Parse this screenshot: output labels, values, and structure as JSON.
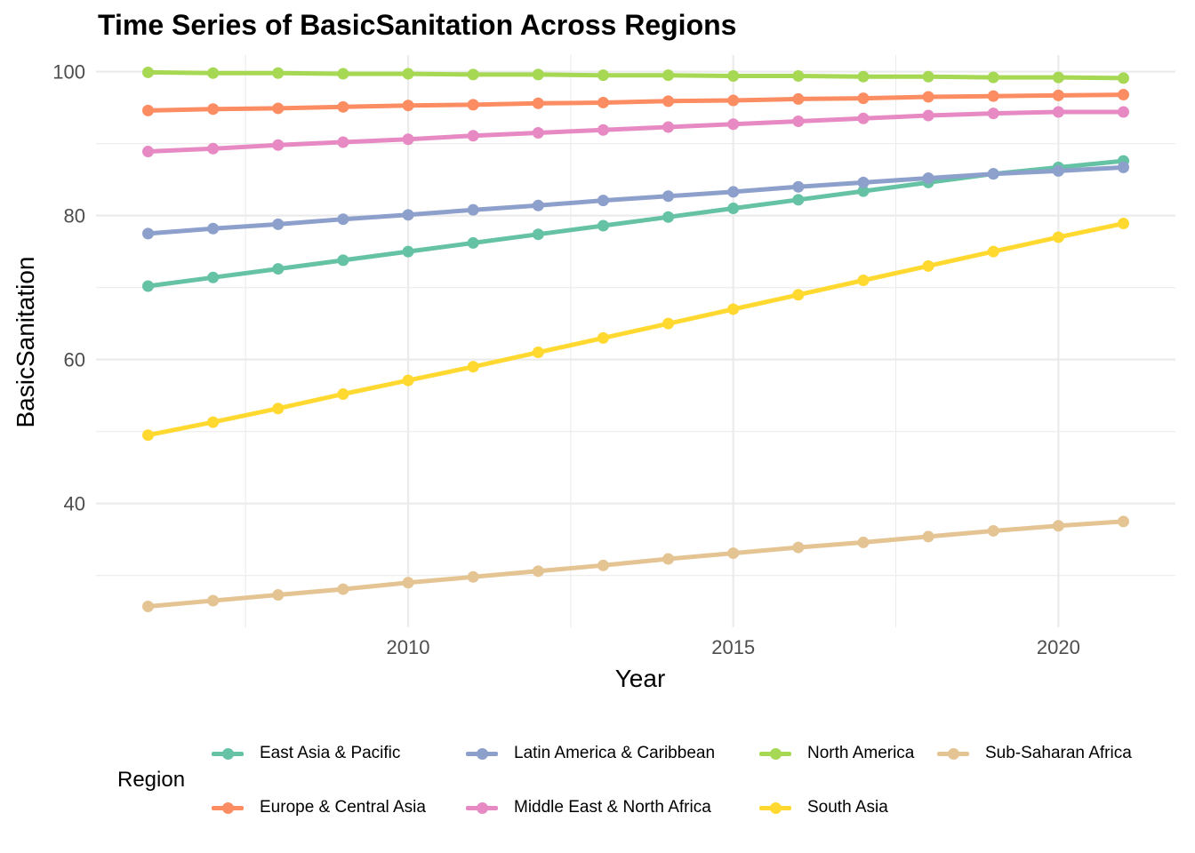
{
  "chart_data": {
    "type": "line",
    "title": "Time Series of BasicSanitation Across Regions",
    "xlabel": "Year",
    "ylabel": "BasicSanitation",
    "xlim": [
      2005.2,
      2021.8
    ],
    "ylim": [
      22.8,
      102.3
    ],
    "x_ticks": [
      2010,
      2015,
      2020
    ],
    "y_ticks": [
      40,
      60,
      80,
      100
    ],
    "grid": true,
    "legend_title": "Region",
    "legend_position": "bottom",
    "x": [
      2006,
      2007,
      2008,
      2009,
      2010,
      2011,
      2012,
      2013,
      2014,
      2015,
      2016,
      2017,
      2018,
      2019,
      2020,
      2021
    ],
    "series": [
      {
        "name": "East Asia & Pacific",
        "color": "#66c2a5",
        "values": [
          70.2,
          71.4,
          72.6,
          73.8,
          75.0,
          76.2,
          77.4,
          78.6,
          79.8,
          81.0,
          82.2,
          83.4,
          84.6,
          85.8,
          86.7,
          87.6
        ]
      },
      {
        "name": "Europe & Central Asia",
        "color": "#fc8d62",
        "values": [
          94.6,
          94.8,
          94.9,
          95.1,
          95.3,
          95.4,
          95.6,
          95.7,
          95.9,
          96.0,
          96.2,
          96.3,
          96.5,
          96.6,
          96.7,
          96.8
        ]
      },
      {
        "name": "Latin America & Caribbean",
        "color": "#8da0cb",
        "values": [
          77.5,
          78.2,
          78.8,
          79.5,
          80.1,
          80.8,
          81.4,
          82.1,
          82.7,
          83.3,
          84.0,
          84.6,
          85.2,
          85.8,
          86.2,
          86.7
        ]
      },
      {
        "name": "Middle East & North Africa",
        "color": "#e78ac3",
        "values": [
          88.9,
          89.3,
          89.8,
          90.2,
          90.6,
          91.1,
          91.5,
          91.9,
          92.3,
          92.7,
          93.1,
          93.5,
          93.9,
          94.2,
          94.4,
          94.4
        ]
      },
      {
        "name": "North America",
        "color": "#a6d854",
        "values": [
          99.9,
          99.8,
          99.8,
          99.7,
          99.7,
          99.6,
          99.6,
          99.5,
          99.5,
          99.4,
          99.4,
          99.3,
          99.3,
          99.2,
          99.2,
          99.1
        ]
      },
      {
        "name": "South Asia",
        "color": "#ffd92f",
        "values": [
          49.5,
          51.3,
          53.2,
          55.2,
          57.1,
          59.0,
          61.0,
          63.0,
          65.0,
          67.0,
          69.0,
          71.0,
          73.0,
          75.0,
          77.0,
          78.9
        ]
      },
      {
        "name": "Sub-Saharan Africa",
        "color": "#e5c494",
        "values": [
          25.7,
          26.5,
          27.3,
          28.1,
          29.0,
          29.8,
          30.6,
          31.4,
          32.3,
          33.1,
          33.9,
          34.6,
          35.4,
          36.2,
          36.9,
          37.5
        ]
      }
    ]
  }
}
